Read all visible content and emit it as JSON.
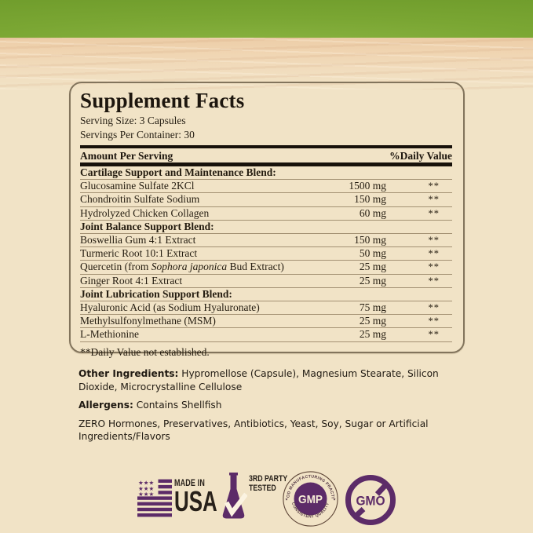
{
  "panel": {
    "title": "Supplement Facts",
    "serving_size": "Serving Size: 3 Capsules",
    "servings_per_container": "Servings Per Container: 30",
    "amount_header": "Amount Per Serving",
    "dv_header": "%Daily Value",
    "rows": [
      {
        "type": "blend",
        "label": "Cartilage Support and Maintenance Blend:"
      },
      {
        "type": "item",
        "label": "Glucosamine Sulfate 2KCl",
        "amount": "1500 mg",
        "dv": "**"
      },
      {
        "type": "item",
        "label": "Chondroitin Sulfate Sodium",
        "amount": "150 mg",
        "dv": "**"
      },
      {
        "type": "item",
        "label": "Hydrolyzed Chicken Collagen",
        "amount": "60 mg",
        "dv": "**"
      },
      {
        "type": "blend",
        "label": "Joint Balance Support Blend:"
      },
      {
        "type": "item",
        "label": "Boswellia Gum 4:1 Extract",
        "amount": "150 mg",
        "dv": "**"
      },
      {
        "type": "item",
        "label": "Turmeric Root 10:1 Extract",
        "amount": "50 mg",
        "dv": "**"
      },
      {
        "type": "item",
        "label": "Quercetin (from Sophora japonica Bud Extract)",
        "label_parts": {
          "prefix": "Quercetin (from ",
          "italic": "Sophora japonica",
          "suffix": " Bud Extract)"
        },
        "amount": "25 mg",
        "dv": "**"
      },
      {
        "type": "item",
        "label": "Ginger Root 4:1 Extract",
        "amount": "25 mg",
        "dv": "**"
      },
      {
        "type": "blend",
        "label": "Joint Lubrication Support Blend:"
      },
      {
        "type": "item",
        "label": "Hyaluronic Acid (as Sodium Hyaluronate)",
        "amount": "75 mg",
        "dv": "**"
      },
      {
        "type": "item",
        "label": "Methylsulfonylmethane (MSM)",
        "amount": "25 mg",
        "dv": "**"
      },
      {
        "type": "item",
        "label": "L-Methionine",
        "amount": "25 mg",
        "dv": "**"
      }
    ],
    "footnote": "**Daily Value not established."
  },
  "details": {
    "other_ingredients_label": "Other Ingredients:",
    "other_ingredients": " Hypromellose (Capsule), Magnesium Stearate, Silicon Dioxide, Microcrystalline Cellulose",
    "allergens_label": "Allergens:",
    "allergens": " Contains Shellfish",
    "claims": "ZERO Hormones, Preservatives, Antibiotics, Yeast, Soy, Sugar or Artificial Ingredients/Flavors"
  },
  "badges": {
    "made_in": "MADE IN",
    "usa": "USA",
    "third_party_line1": "3RD PARTY",
    "third_party_line2": "TESTED",
    "gmp_arc_top": "GOOD MANUFACTURING PRACTICE",
    "gmp_arc_bottom": "CONSISTENT QUALITY",
    "gmp_center": "GMP",
    "gmo": "GMO"
  },
  "colors": {
    "accent_purple": "#5c2b68",
    "band_green": "#7aa633",
    "background_cream": "#f1e3c6",
    "rule_black": "#17110a"
  }
}
